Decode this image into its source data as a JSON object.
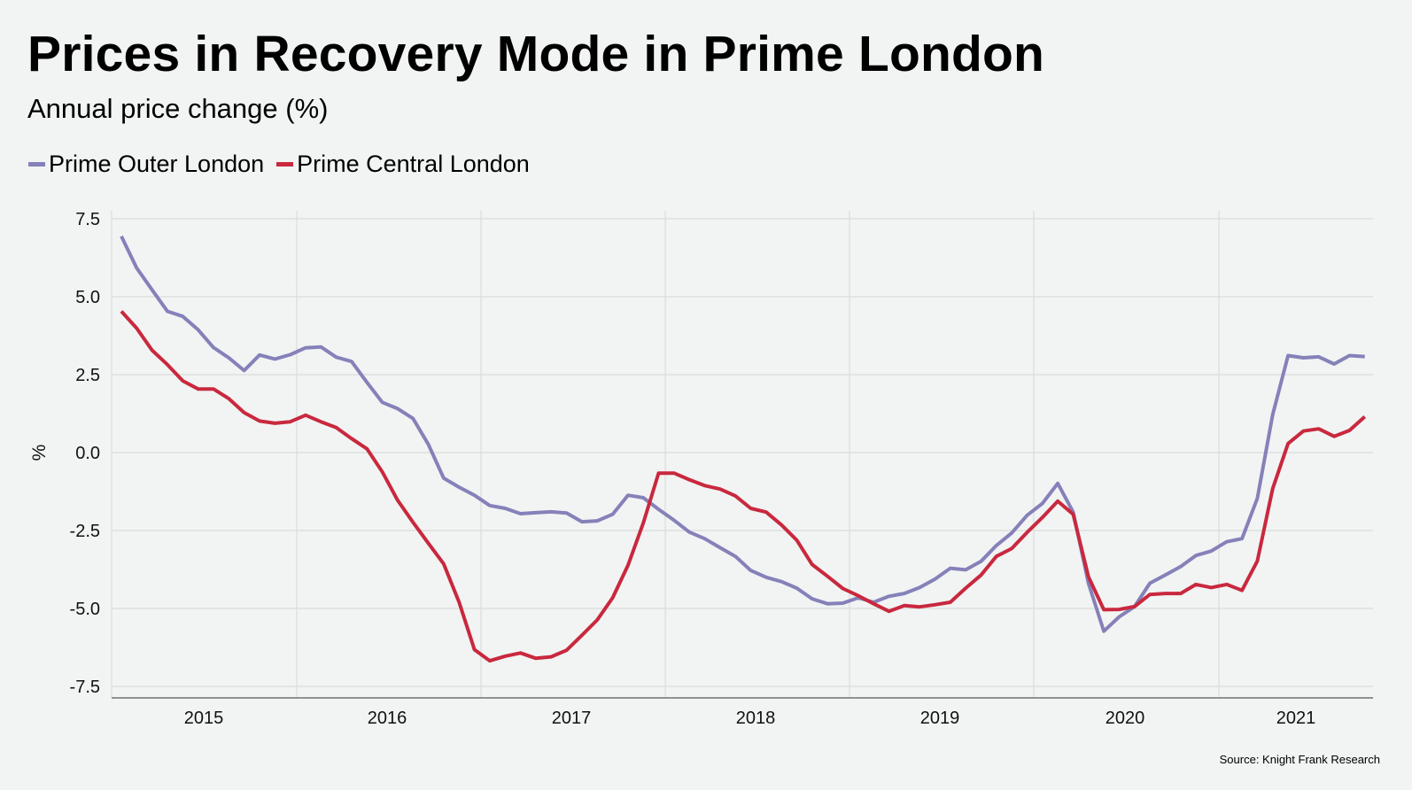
{
  "header": {
    "title": "Prices in Recovery Mode in Prime London",
    "subtitle": "Annual price change (%)"
  },
  "legend": [
    {
      "label": "Prime Outer London",
      "color": "#8581b9"
    },
    {
      "label": "Prime Central London",
      "color": "#c9283e"
    }
  ],
  "footer": {
    "source": "Source: Knight Frank Research"
  },
  "chart_data": {
    "type": "line",
    "title": "Prices in Recovery Mode in Prime London",
    "subtitle": "Annual price change (%)",
    "xlabel": "",
    "ylabel": "%",
    "frequency": "monthly",
    "x_tick_labels": [
      "2015",
      "2016",
      "2017",
      "2018",
      "2019",
      "2020",
      "2021"
    ],
    "y_ticks": [
      7.5,
      5.0,
      2.5,
      0.0,
      -2.5,
      -5.0,
      -7.5
    ],
    "y_tick_labels": [
      "7.5",
      "5.0",
      "2.5",
      "0.0",
      "-2.5",
      "-5.0",
      "-7.5"
    ],
    "ylim": [
      -7.95,
      7.9
    ],
    "grid": true,
    "legend_position": "top-left",
    "series": [
      {
        "name": "Prime Outer London",
        "color": "#8581b9",
        "values": [
          6.94,
          5.92,
          5.22,
          4.53,
          4.37,
          3.94,
          3.37,
          3.04,
          2.63,
          3.13,
          3.0,
          3.14,
          3.36,
          3.39,
          3.06,
          2.92,
          2.25,
          1.61,
          1.41,
          1.09,
          0.26,
          -0.82,
          -1.11,
          -1.37,
          -1.7,
          -1.79,
          -1.96,
          -1.93,
          -1.9,
          -1.94,
          -2.22,
          -2.19,
          -1.98,
          -1.37,
          -1.45,
          -1.82,
          -2.17,
          -2.55,
          -2.76,
          -3.05,
          -3.33,
          -3.78,
          -4.0,
          -4.14,
          -4.35,
          -4.69,
          -4.85,
          -4.83,
          -4.66,
          -4.8,
          -4.61,
          -4.52,
          -4.33,
          -4.06,
          -3.71,
          -3.76,
          -3.49,
          -2.98,
          -2.58,
          -2.01,
          -1.63,
          -0.99,
          -1.91,
          -4.2,
          -5.73,
          -5.27,
          -4.94,
          -4.19,
          -3.93,
          -3.66,
          -3.3,
          -3.16,
          -2.86,
          -2.76,
          -1.47,
          1.21,
          3.11,
          3.04,
          3.07,
          2.84,
          3.11,
          3.08
        ]
      },
      {
        "name": "Prime Central London",
        "color": "#c9283e",
        "values": [
          4.53,
          3.99,
          3.28,
          2.82,
          2.3,
          2.04,
          2.04,
          1.73,
          1.28,
          1.01,
          0.94,
          0.99,
          1.2,
          0.99,
          0.8,
          0.45,
          0.12,
          -0.62,
          -1.53,
          -2.24,
          -2.91,
          -3.57,
          -4.8,
          -6.32,
          -6.68,
          -6.53,
          -6.43,
          -6.6,
          -6.55,
          -6.34,
          -5.86,
          -5.37,
          -4.66,
          -3.62,
          -2.26,
          -0.66,
          -0.66,
          -0.87,
          -1.06,
          -1.17,
          -1.39,
          -1.79,
          -1.91,
          -2.32,
          -2.81,
          -3.59,
          -3.97,
          -4.36,
          -4.59,
          -4.85,
          -5.09,
          -4.91,
          -4.95,
          -4.88,
          -4.8,
          -4.35,
          -3.93,
          -3.33,
          -3.08,
          -2.56,
          -2.08,
          -1.56,
          -1.98,
          -3.99,
          -5.04,
          -5.03,
          -4.94,
          -4.55,
          -4.52,
          -4.52,
          -4.23,
          -4.33,
          -4.23,
          -4.42,
          -3.48,
          -1.16,
          0.29,
          0.69,
          0.76,
          0.52,
          0.71,
          1.15
        ]
      }
    ]
  }
}
